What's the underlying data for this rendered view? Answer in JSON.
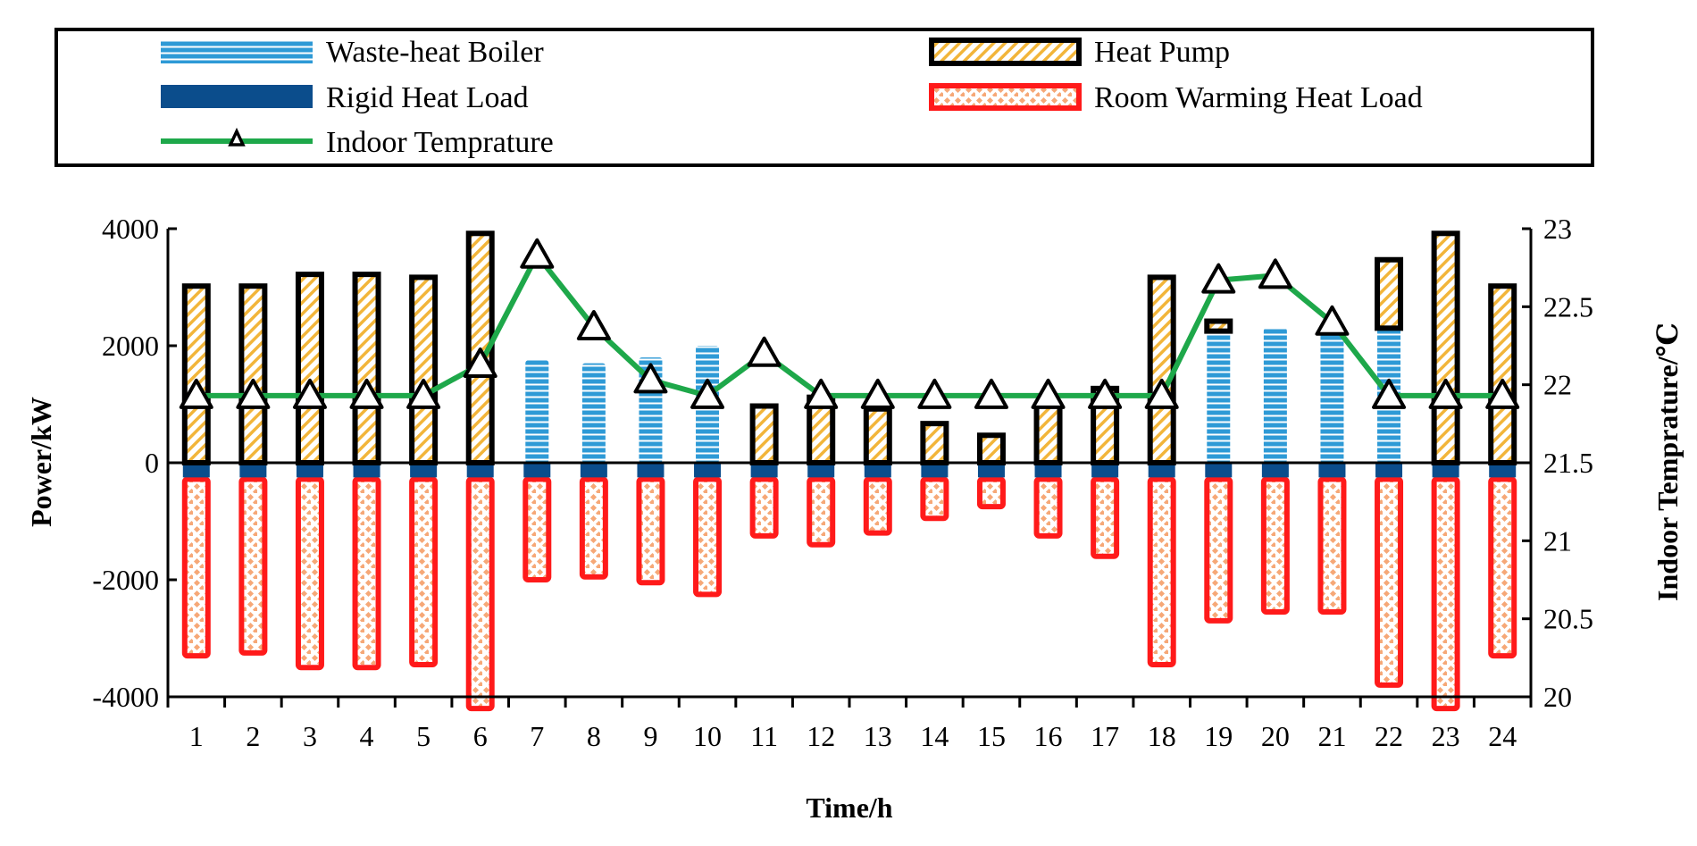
{
  "chart_data": {
    "type": "bar",
    "xlabel": "Time/h",
    "ylabel": "Power/kW",
    "y2label": "Indoor Temprature/℃",
    "ylim": [
      -4000,
      4000
    ],
    "yticks": [
      4000,
      2000,
      0,
      -2000,
      -4000
    ],
    "y2lim": [
      20,
      23
    ],
    "y2ticks": [
      23,
      22.5,
      22,
      21.5,
      21,
      20.5,
      20
    ],
    "categories": [
      "1",
      "2",
      "3",
      "4",
      "5",
      "6",
      "7",
      "8",
      "9",
      "10",
      "11",
      "12",
      "13",
      "14",
      "15",
      "16",
      "17",
      "18",
      "19",
      "20",
      "21",
      "22",
      "23",
      "24"
    ],
    "series": [
      {
        "name": "Waste-heat Boiler",
        "axis": "left",
        "values": [
          0,
          0,
          0,
          0,
          0,
          0,
          1750,
          1700,
          1800,
          2000,
          0,
          0,
          0,
          0,
          0,
          0,
          0,
          0,
          2250,
          2300,
          2300,
          2300,
          0,
          0
        ]
      },
      {
        "name": "Heat Pump",
        "axis": "left",
        "values": [
          3050,
          3050,
          3250,
          3250,
          3200,
          3950,
          0,
          0,
          0,
          0,
          1000,
          1150,
          950,
          700,
          500,
          1000,
          1300,
          3200,
          200,
          0,
          0,
          1200,
          3950,
          3050
        ]
      },
      {
        "name": "Rigid Heat Load",
        "axis": "left",
        "values": [
          -250,
          -250,
          -250,
          -250,
          -250,
          -250,
          -250,
          -250,
          -250,
          -250,
          -250,
          -250,
          -250,
          -250,
          -250,
          -250,
          -250,
          -250,
          -250,
          -250,
          -250,
          -250,
          -250,
          -250
        ]
      },
      {
        "name": "Room Warming Heat Load",
        "axis": "left",
        "values": [
          -3050,
          -3000,
          -3250,
          -3250,
          -3200,
          -3950,
          -1750,
          -1700,
          -1800,
          -2000,
          -1000,
          -1150,
          -950,
          -700,
          -500,
          -1000,
          -1350,
          -3200,
          -2450,
          -2300,
          -2300,
          -3550,
          -3950,
          -3050
        ]
      },
      {
        "name": "Indoor Temprature",
        "axis": "right",
        "values": [
          21.93,
          21.93,
          21.93,
          21.93,
          21.93,
          22.13,
          22.83,
          22.37,
          22.03,
          21.93,
          22.2,
          21.93,
          21.93,
          21.93,
          21.93,
          21.93,
          21.93,
          21.93,
          22.67,
          22.7,
          22.4,
          21.93,
          21.93,
          21.93
        ]
      }
    ],
    "legend": [
      {
        "label": "Waste-heat Boiler",
        "key": "boiler"
      },
      {
        "label": "Heat Pump",
        "key": "pump"
      },
      {
        "label": "Rigid Heat Load",
        "key": "rigid"
      },
      {
        "label": "Room Warming Heat Load",
        "key": "room"
      },
      {
        "label": "Indoor Temprature",
        "key": "temp"
      }
    ],
    "legend_position": "top",
    "colors": {
      "boiler": "#2e9ad6",
      "pump_fill": "#f7c34a",
      "pump_edge": "#000000",
      "rigid": "#0b4d8c",
      "room_edge": "#ff1a1a",
      "room_fill": "#f6b084",
      "temp_line": "#1ea84a"
    }
  }
}
